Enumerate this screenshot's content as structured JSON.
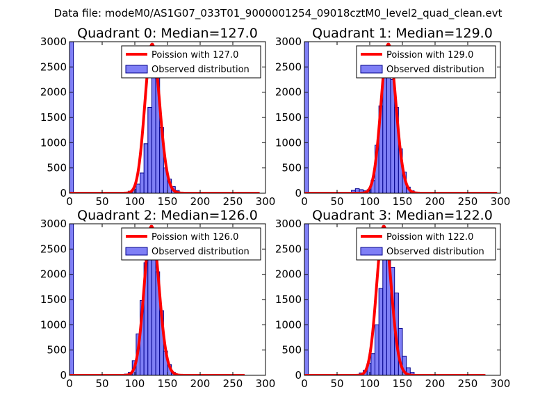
{
  "figure": {
    "suptitle": "Data file: modeM0/AS1G07_033T01_9000001254_09018cztM0_level2_quad_clean.evt"
  },
  "colors": {
    "bar_fill": "#7f7ff6",
    "bar_edge": "#00008b",
    "poisson_line": "#ff0000",
    "background": "#ffffff",
    "axes": "#000000"
  },
  "chart_data": [
    {
      "type": "bar",
      "title": "Quadrant 0: Median=127.0",
      "median": 127.0,
      "xlim": [
        0,
        300
      ],
      "ylim": [
        0,
        3000
      ],
      "xticks": [
        0,
        50,
        100,
        150,
        200,
        250,
        300
      ],
      "yticks": [
        0,
        500,
        1000,
        1500,
        2000,
        2500,
        3000
      ],
      "bin_width": 6,
      "legend": [
        "Poission with 127.0",
        "Observed distribution"
      ],
      "legend_position": "top-right",
      "line_xmax": 291,
      "bars": [
        [
          0,
          3000
        ],
        [
          72,
          10
        ],
        [
          78,
          20
        ],
        [
          84,
          20
        ],
        [
          90,
          40
        ],
        [
          96,
          80
        ],
        [
          102,
          180
        ],
        [
          108,
          400
        ],
        [
          114,
          980
        ],
        [
          120,
          1700
        ],
        [
          126,
          2380
        ],
        [
          132,
          2330
        ],
        [
          138,
          1300
        ],
        [
          144,
          500
        ],
        [
          150,
          280
        ],
        [
          156,
          130
        ],
        [
          162,
          55
        ],
        [
          168,
          20
        ],
        [
          174,
          8
        ]
      ]
    },
    {
      "type": "bar",
      "title": "Quadrant 1: Median=129.0",
      "median": 129.0,
      "xlim": [
        0,
        300
      ],
      "ylim": [
        0,
        3000
      ],
      "xticks": [
        0,
        50,
        100,
        150,
        200,
        250,
        300
      ],
      "yticks": [
        0,
        500,
        1000,
        1500,
        2000,
        2500,
        3000
      ],
      "bin_width": 6,
      "legend": [
        "Poission with 129.0",
        "Observed distribution"
      ],
      "legend_position": "top-right",
      "line_xmax": 295,
      "bars": [
        [
          0,
          3000
        ],
        [
          60,
          10
        ],
        [
          66,
          20
        ],
        [
          72,
          60
        ],
        [
          78,
          90
        ],
        [
          84,
          70
        ],
        [
          90,
          50
        ],
        [
          96,
          70
        ],
        [
          102,
          250
        ],
        [
          108,
          950
        ],
        [
          114,
          1730
        ],
        [
          120,
          2300
        ],
        [
          126,
          2520
        ],
        [
          132,
          2250
        ],
        [
          138,
          1700
        ],
        [
          144,
          880
        ],
        [
          150,
          420
        ],
        [
          156,
          120
        ],
        [
          162,
          50
        ],
        [
          168,
          20
        ],
        [
          174,
          8
        ]
      ]
    },
    {
      "type": "bar",
      "title": "Quadrant 2: Median=126.0",
      "median": 126.0,
      "xlim": [
        0,
        300
      ],
      "ylim": [
        0,
        3000
      ],
      "xticks": [
        0,
        50,
        100,
        150,
        200,
        250,
        300
      ],
      "yticks": [
        0,
        500,
        1000,
        1500,
        2000,
        2500,
        3000
      ],
      "bin_width": 6,
      "legend": [
        "Poission with 126.0",
        "Observed distribution"
      ],
      "legend_position": "top-right",
      "line_xmax": 268,
      "bars": [
        [
          0,
          3000
        ],
        [
          78,
          10
        ],
        [
          84,
          25
        ],
        [
          90,
          60
        ],
        [
          96,
          290
        ],
        [
          102,
          820
        ],
        [
          108,
          1480
        ],
        [
          114,
          2230
        ],
        [
          120,
          2700
        ],
        [
          126,
          2320
        ],
        [
          132,
          2050
        ],
        [
          138,
          1280
        ],
        [
          144,
          480
        ],
        [
          150,
          210
        ],
        [
          156,
          60
        ],
        [
          162,
          20
        ],
        [
          168,
          8
        ]
      ]
    },
    {
      "type": "bar",
      "title": "Quadrant 3: Median=122.0",
      "median": 122.0,
      "xlim": [
        0,
        300
      ],
      "ylim": [
        0,
        3000
      ],
      "xticks": [
        0,
        50,
        100,
        150,
        200,
        250,
        300
      ],
      "yticks": [
        0,
        500,
        1000,
        1500,
        2000,
        2500,
        3000
      ],
      "bin_width": 6,
      "legend": [
        "Poission with 122.0",
        "Observed distribution"
      ],
      "legend_position": "top-right",
      "line_xmax": 277,
      "bars": [
        [
          0,
          3000
        ],
        [
          60,
          8
        ],
        [
          66,
          10
        ],
        [
          72,
          15
        ],
        [
          78,
          20
        ],
        [
          84,
          45
        ],
        [
          90,
          100
        ],
        [
          96,
          240
        ],
        [
          102,
          430
        ],
        [
          108,
          1000
        ],
        [
          114,
          1720
        ],
        [
          120,
          2440
        ],
        [
          126,
          2530
        ],
        [
          132,
          2140
        ],
        [
          138,
          1630
        ],
        [
          144,
          930
        ],
        [
          150,
          380
        ],
        [
          156,
          150
        ],
        [
          162,
          60
        ],
        [
          168,
          20
        ],
        [
          174,
          8
        ]
      ]
    }
  ]
}
